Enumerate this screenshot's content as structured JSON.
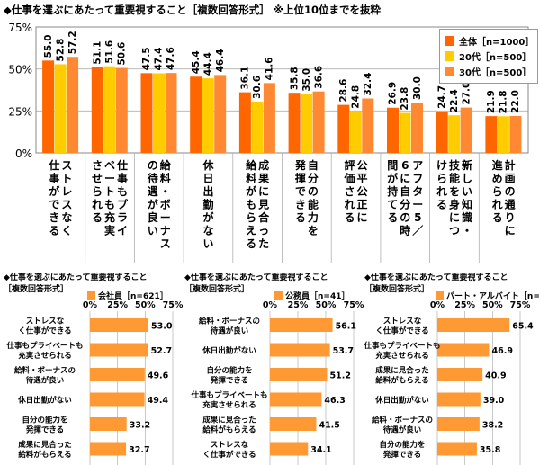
{
  "main_title": "◆仕事を選ぶにあたって重要視すること［複数回答形式］",
  "main_note": "※上位10位までを抜粋",
  "colors": {
    "all": "#ff6600",
    "age20": "#ffcc00",
    "age30": "#ff8833",
    "single": "#ff9933",
    "grid": "#b0b0b0"
  },
  "chart_data": [
    {
      "type": "bar",
      "categories": [
        "ストレスなく仕事ができる",
        "仕事もプライベートも充実させられる",
        "給料・ボーナスの待遇が良い",
        "休日出勤がない",
        "成果に見合った給料がもらえる",
        "自分の能力を発揮できる",
        "公平公正に評価される",
        "アフター5／6に自分の時間が持てる",
        "新しい知識・技能を身につけられる",
        "計画の通りに進められる"
      ],
      "yticks": [
        "0%",
        "25%",
        "50%",
        "75%"
      ],
      "ylim": [
        0,
        75
      ],
      "series": [
        {
          "name": "全体［n=1000］",
          "values": [
            55.0,
            51.1,
            47.5,
            45.4,
            36.1,
            35.8,
            28.6,
            26.9,
            24.7,
            21.9
          ]
        },
        {
          "name": "20代［n=500］",
          "values": [
            52.8,
            51.6,
            47.4,
            44.4,
            30.6,
            35.0,
            24.8,
            23.8,
            22.4,
            21.8
          ]
        },
        {
          "name": "30代［n=500］",
          "values": [
            57.2,
            50.6,
            47.6,
            46.4,
            41.6,
            36.6,
            32.4,
            30.0,
            27.0,
            22.0
          ]
        }
      ],
      "legend_position": "top-right"
    },
    {
      "type": "bar",
      "title": "◆仕事を選ぶにあたって重要視すること",
      "subtitle": "［複数回答形式］",
      "series_name": "会社員［n=621］",
      "xticks": [
        "0%",
        "25%",
        "50%",
        "75%"
      ],
      "xlim": [
        0,
        75
      ],
      "categories": [
        "ストレスなく仕事ができる",
        "仕事もプライベートも充実させられる",
        "給料・ボーナスの待遇が良い",
        "休日出勤がない",
        "自分の能力を発揮できる",
        "成果に見合った給料がもらえる"
      ],
      "values": [
        53.0,
        52.7,
        49.6,
        49.4,
        33.2,
        32.7
      ]
    },
    {
      "type": "bar",
      "title": "◆仕事を選ぶにあたって重要視すること",
      "subtitle": "［複数回答形式］",
      "series_name": "公務員［n=41］",
      "xticks": [
        "0%",
        "25%",
        "50%",
        "75%"
      ],
      "xlim": [
        0,
        75
      ],
      "categories": [
        "給料・ボーナスの待遇が良い",
        "休日出勤がない",
        "自分の能力を発揮できる",
        "仕事もプライベートも充実させられる",
        "成果に見合った給料がもらえる",
        "ストレスなく仕事ができる"
      ],
      "values": [
        56.1,
        53.7,
        51.2,
        46.3,
        41.5,
        34.1
      ]
    },
    {
      "type": "bar",
      "title": "◆仕事を選ぶにあたって重要視すること",
      "subtitle": "［複数回答形式］",
      "series_name": "パート・アルバイト［n=254］",
      "xticks": [
        "0%",
        "25%",
        "50%",
        "75%"
      ],
      "xlim": [
        0,
        75
      ],
      "categories": [
        "ストレスなく仕事ができる",
        "仕事もプライベートも充実させられる",
        "成果に見合った給料がもらえる",
        "休日出勤がない",
        "給料・ボーナスの待遇が良い",
        "自分の能力を発揮できる"
      ],
      "values": [
        65.4,
        46.9,
        40.9,
        39.0,
        38.2,
        35.8
      ]
    }
  ]
}
